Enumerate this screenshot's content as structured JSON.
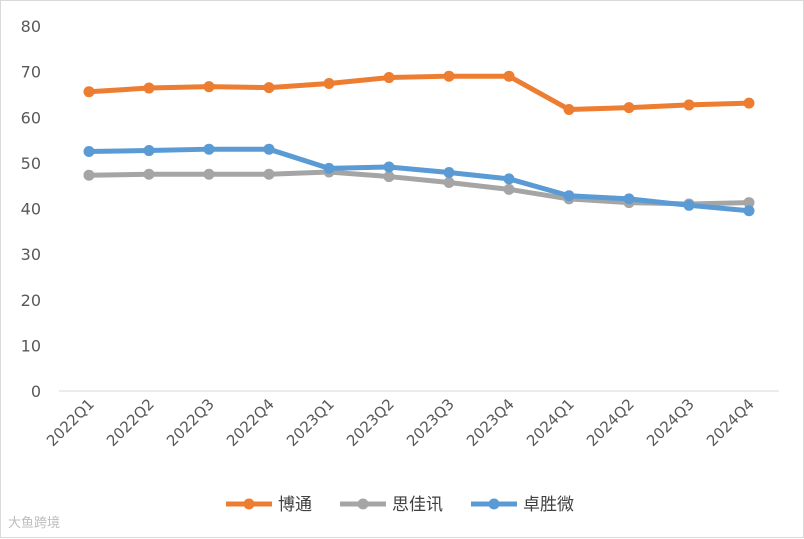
{
  "chart_data": {
    "type": "line",
    "categories": [
      "2022Q1",
      "2022Q2",
      "2022Q3",
      "2022Q4",
      "2023Q1",
      "2023Q2",
      "2023Q3",
      "2023Q4",
      "2024Q1",
      "2024Q2",
      "2024Q3",
      "2024Q4"
    ],
    "ylim": [
      0,
      80
    ],
    "yticks": [
      0,
      10,
      20,
      30,
      40,
      50,
      60,
      70,
      80
    ],
    "grid": false,
    "legend_position": "bottom",
    "series": [
      {
        "name": "博通",
        "color": "#ED7D31",
        "values": [
          65.6,
          66.4,
          66.7,
          66.5,
          67.4,
          68.7,
          69.0,
          69.0,
          61.7,
          62.1,
          62.7,
          63.1
        ]
      },
      {
        "name": "思佳讯",
        "color": "#A5A5A5",
        "values": [
          47.3,
          47.5,
          47.5,
          47.5,
          48.0,
          47.0,
          45.7,
          44.2,
          42.1,
          41.3,
          41.0,
          41.3
        ]
      },
      {
        "name": "卓胜微",
        "color": "#5B9BD5",
        "values": [
          52.5,
          52.7,
          53.0,
          53.0,
          48.8,
          49.1,
          47.9,
          46.5,
          42.8,
          42.1,
          40.7,
          39.5
        ]
      }
    ]
  },
  "watermark": "大鱼跨境"
}
